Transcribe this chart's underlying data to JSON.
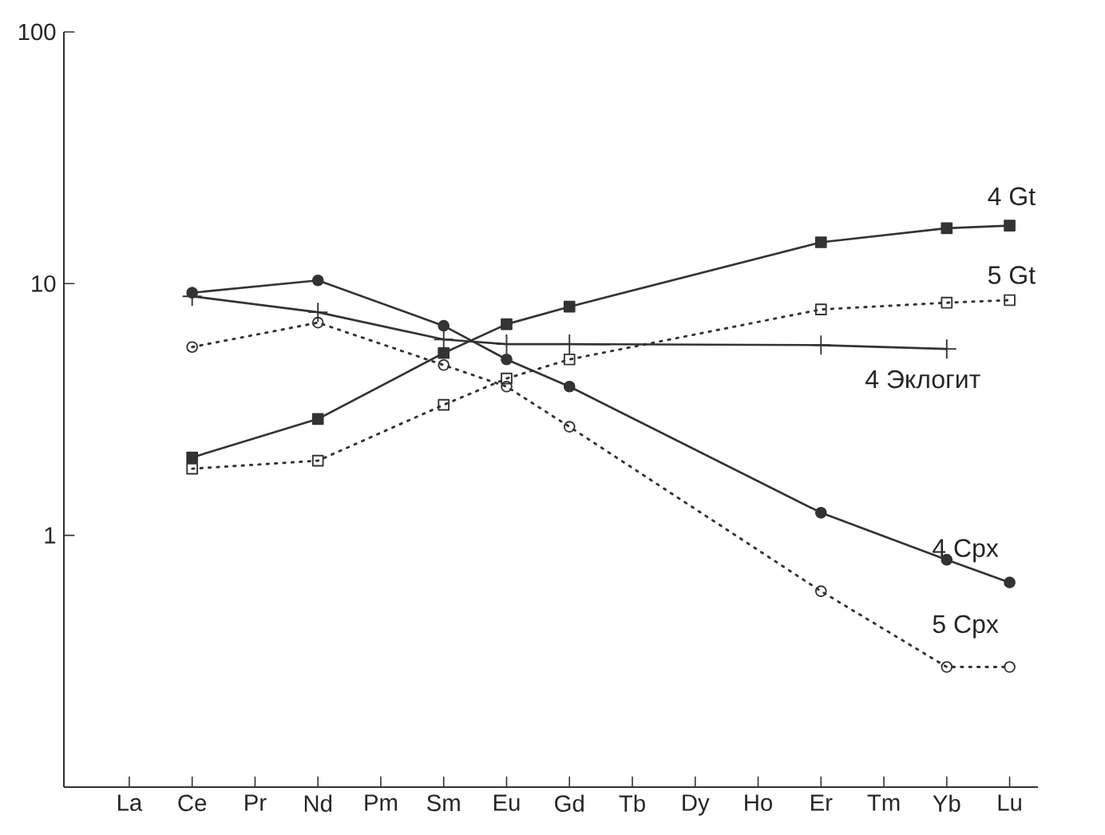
{
  "chart_data": {
    "type": "line",
    "log": "y",
    "categories": [
      "La",
      "Ce",
      "Pr",
      "Nd",
      "Pm",
      "Sm",
      "Eu",
      "Gd",
      "Tb",
      "Dy",
      "Ho",
      "Er",
      "Tm",
      "Yb",
      "Lu"
    ],
    "ylim": [
      0.1,
      100
    ],
    "yticks": [
      1,
      10,
      100
    ],
    "grid": false,
    "series": [
      {
        "name": "4 Gt",
        "color": "#333333",
        "marker": "square",
        "line_style": "solid",
        "values": [
          null,
          2.04,
          null,
          2.9,
          null,
          5.3,
          6.9,
          8.1,
          null,
          null,
          null,
          14.6,
          null,
          16.6,
          17
        ]
      },
      {
        "name": "5 Gt",
        "color": "#333333",
        "marker": "square",
        "line_style": "dotted",
        "values": [
          null,
          1.84,
          null,
          1.98,
          null,
          3.3,
          4.2,
          5.0,
          null,
          null,
          null,
          7.9,
          null,
          8.4,
          8.6
        ]
      },
      {
        "name": "4 Эклогит",
        "color": "#333333",
        "marker": "cross",
        "line_style": "solid",
        "values": [
          null,
          8.9,
          null,
          7.7,
          null,
          6.0,
          5.75,
          5.75,
          null,
          null,
          null,
          5.7,
          null,
          5.5,
          null
        ]
      },
      {
        "name": "4 Cpx",
        "color": "#333333",
        "marker": "circle",
        "line_style": "solid",
        "values": [
          null,
          9.2,
          null,
          10.3,
          null,
          6.8,
          5.0,
          3.9,
          null,
          null,
          null,
          1.23,
          null,
          0.8,
          0.65
        ]
      },
      {
        "name": "5 Cpx",
        "color": "#333333",
        "marker": "circle",
        "line_style": "dotted",
        "values": [
          null,
          5.6,
          null,
          7.0,
          null,
          4.75,
          3.9,
          2.7,
          null,
          null,
          null,
          0.6,
          null,
          0.3,
          0.3
        ]
      }
    ]
  }
}
